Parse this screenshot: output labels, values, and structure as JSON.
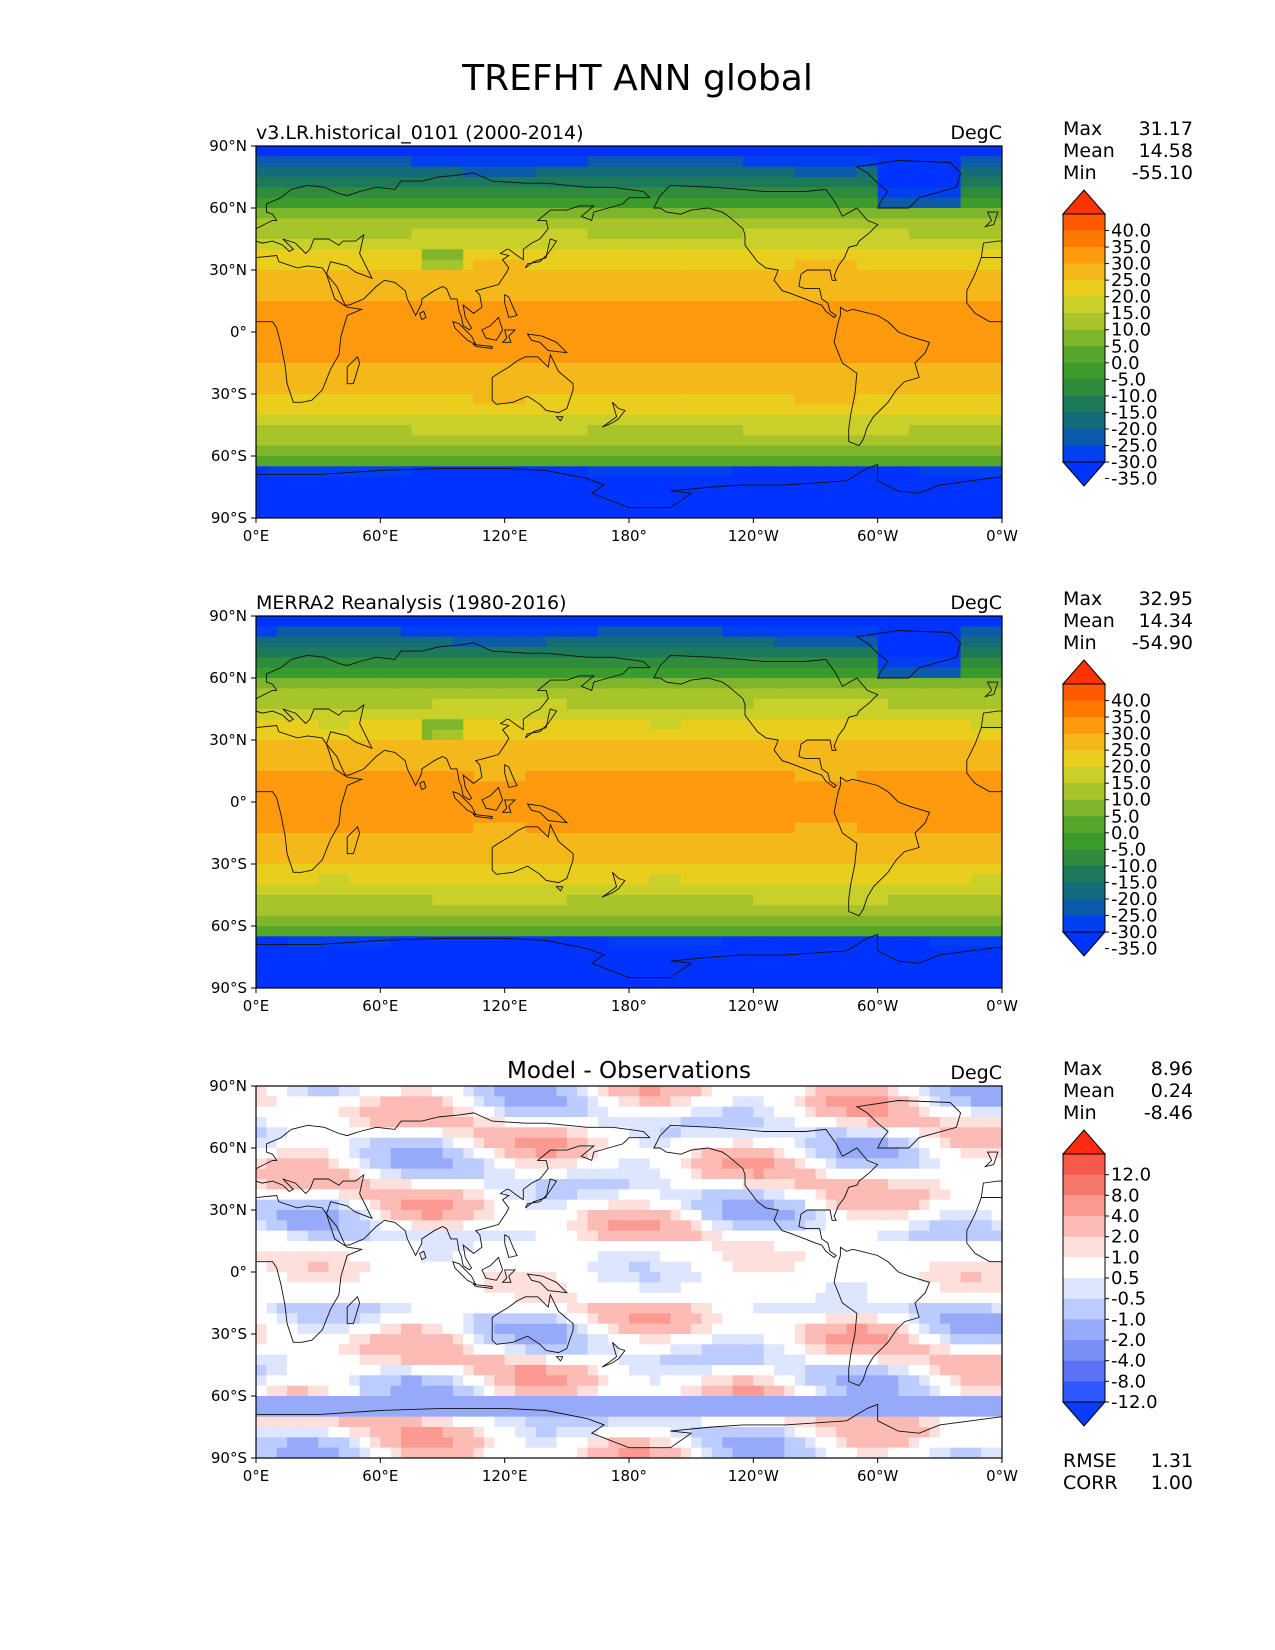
{
  "title": "TREFHT ANN global",
  "lat_ticks": [
    "90°N",
    "60°N",
    "30°N",
    "0°",
    "30°S",
    "60°S",
    "90°S"
  ],
  "lon_ticks": [
    "0°E",
    "60°E",
    "120°E",
    "180°",
    "120°W",
    "60°W",
    "0°W"
  ],
  "panels": [
    {
      "left_title": "v3.LR.historical_0101 (2000-2014)",
      "center_title": "",
      "units": "DegC",
      "stats": [
        {
          "label": "Max",
          "value": "31.17"
        },
        {
          "label": "Mean",
          "value": "14.58"
        },
        {
          "label": "Min",
          "value": "-55.10"
        }
      ],
      "colorbar": {
        "ticks": [
          "40.0",
          "35.0",
          "30.0",
          "25.0",
          "20.0",
          "15.0",
          "10.0",
          "5.0",
          "0.0",
          "-5.0",
          "-10.0",
          "-15.0",
          "-20.0",
          "-25.0",
          "-30.0",
          "-35.0"
        ],
        "colors": [
          "#ff3300",
          "#ff5a00",
          "#ff7800",
          "#ff9a0f",
          "#f5b81b",
          "#e9ce1d",
          "#c9d02a",
          "#a7c42a",
          "#7fb52a",
          "#55a62a",
          "#3c9b2d",
          "#2e8c3c",
          "#1c7a5a",
          "#146b7a",
          "#0c5aaa",
          "#0040f0",
          "#0033ff"
        ]
      }
    },
    {
      "left_title": "MERRA2 Reanalysis (1980-2016)",
      "center_title": "",
      "units": "DegC",
      "stats": [
        {
          "label": "Max",
          "value": "32.95"
        },
        {
          "label": "Mean",
          "value": "14.34"
        },
        {
          "label": "Min",
          "value": "-54.90"
        }
      ],
      "colorbar": {
        "ticks": [
          "40.0",
          "35.0",
          "30.0",
          "25.0",
          "20.0",
          "15.0",
          "10.0",
          "5.0",
          "0.0",
          "-5.0",
          "-10.0",
          "-15.0",
          "-20.0",
          "-25.0",
          "-30.0",
          "-35.0"
        ],
        "colors": [
          "#ff3300",
          "#ff5a00",
          "#ff7800",
          "#ff9a0f",
          "#f5b81b",
          "#e9ce1d",
          "#c9d02a",
          "#a7c42a",
          "#7fb52a",
          "#55a62a",
          "#3c9b2d",
          "#2e8c3c",
          "#1c7a5a",
          "#146b7a",
          "#0c5aaa",
          "#0040f0",
          "#0033ff"
        ]
      }
    },
    {
      "left_title": "",
      "center_title": "Model - Observations",
      "units": "DegC",
      "stats": [
        {
          "label": "Max",
          "value": "8.96"
        },
        {
          "label": "Mean",
          "value": "0.24"
        },
        {
          "label": "Min",
          "value": "-8.46"
        }
      ],
      "colorbar": {
        "ticks": [
          "12.0",
          "8.0",
          "4.0",
          "2.0",
          "1.0",
          "0.5",
          "-0.5",
          "-1.0",
          "-2.0",
          "-4.0",
          "-8.0",
          "-12.0"
        ],
        "colors": [
          "#ff2a10",
          "#f65a4b",
          "#f8776b",
          "#fa9a90",
          "#fcbcb5",
          "#fde0dc",
          "#ffffff",
          "#dde5ff",
          "#bcccff",
          "#97aafa",
          "#7a8ff5",
          "#5b72f5",
          "#2f57ff",
          "#0a3cff"
        ]
      },
      "extra_stats": [
        {
          "label": "RMSE",
          "value": "1.31"
        },
        {
          "label": "CORR",
          "value": "1.00"
        }
      ]
    }
  ]
}
